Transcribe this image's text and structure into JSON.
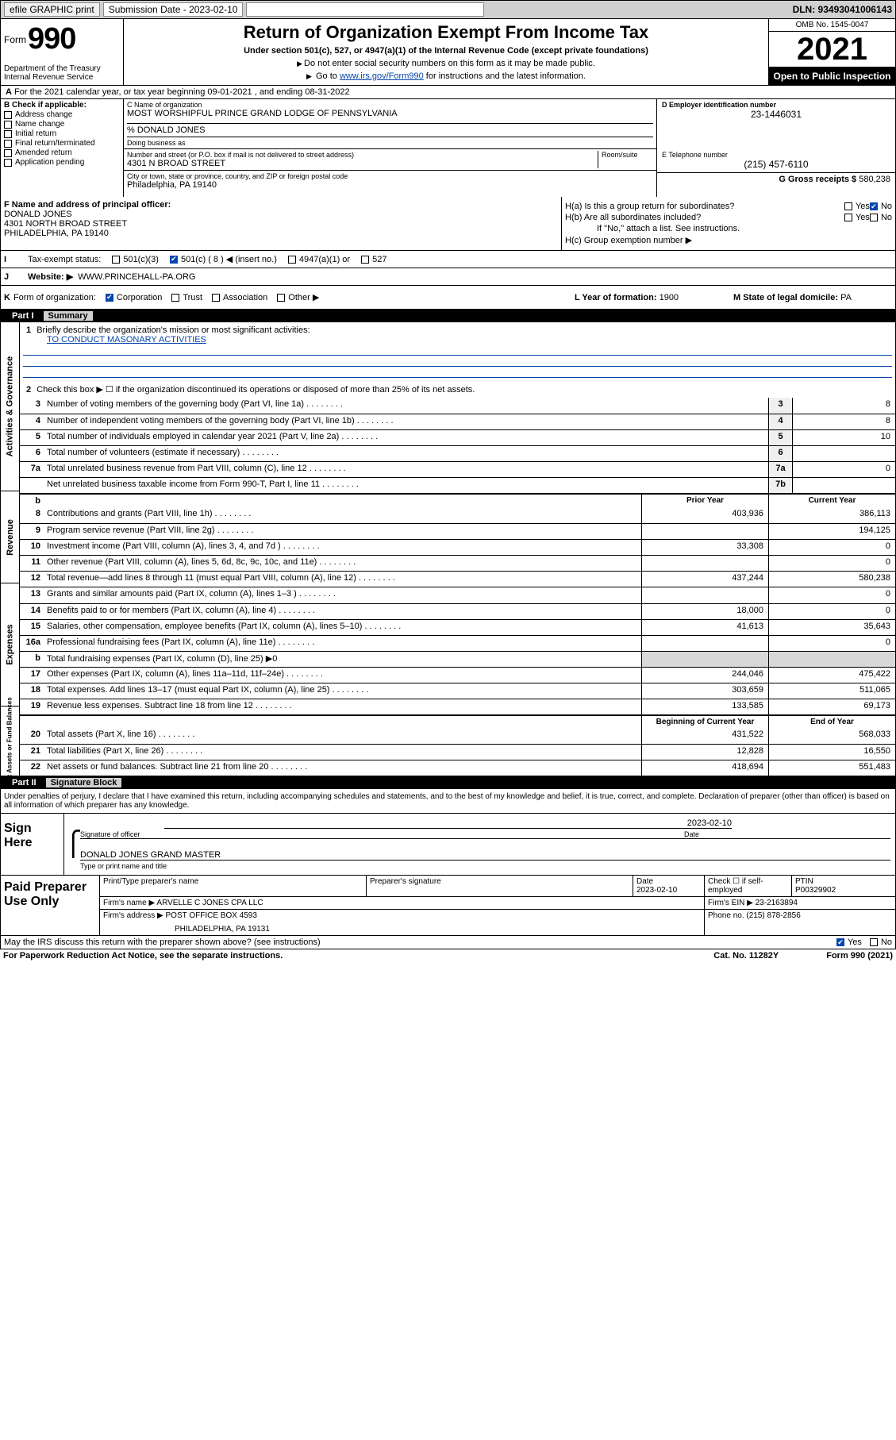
{
  "topbar": {
    "efile": "efile GRAPHIC print",
    "sub_label": "Submission Date - 2023-02-10",
    "dln": "DLN: 93493041006143"
  },
  "header": {
    "form_word": "Form",
    "form_num": "990",
    "dept": "Department of the Treasury\nInternal Revenue Service",
    "title": "Return of Organization Exempt From Income Tax",
    "sub1": "Under section 501(c), 527, or 4947(a)(1) of the Internal Revenue Code (except private foundations)",
    "sub2": "Do not enter social security numbers on this form as it may be made public.",
    "sub3_pre": "Go to ",
    "sub3_link": "www.irs.gov/Form990",
    "sub3_post": " for instructions and the latest information.",
    "omb": "OMB No. 1545-0047",
    "year": "2021",
    "open": "Open to Public Inspection"
  },
  "row_a": {
    "label": "A",
    "text": "For the 2021 calendar year, or tax year beginning 09-01-2021   , and ending 08-31-2022"
  },
  "col_b": {
    "header": "B Check if applicable:",
    "items": [
      "Address change",
      "Name change",
      "Initial return",
      "Final return/terminated",
      "Amended return",
      "Application pending"
    ]
  },
  "col_c": {
    "name_label": "C Name of organization",
    "name": "MOST WORSHIPFUL PRINCE GRAND LODGE OF PENNSYLVANIA",
    "care_of": "% DONALD JONES",
    "dba_label": "Doing business as",
    "addr_label": "Number and street (or P.O. box if mail is not delivered to street address)",
    "addr": "4301 N BROAD STREET",
    "room_label": "Room/suite",
    "city_label": "City or town, state or province, country, and ZIP or foreign postal code",
    "city": "Philadelphia, PA  19140",
    "f_label": "F Name and address of principal officer:",
    "f_name": "DONALD JONES",
    "f_addr1": "4301 NORTH BROAD STREET",
    "f_addr2": "PHILADELPHIA, PA  19140"
  },
  "col_d": {
    "ein_label": "D Employer identification number",
    "ein": "23-1446031",
    "tel_label": "E Telephone number",
    "tel": "(215) 457-6110",
    "gross_label": "G Gross receipts $",
    "gross": "580,238"
  },
  "h": {
    "ha": "H(a)  Is this a group return for subordinates?",
    "hb": "H(b)  Are all subordinates included?",
    "hb_note": "If \"No,\" attach a list. See instructions.",
    "hc": "H(c)  Group exemption number ▶",
    "yes": "Yes",
    "no": "No"
  },
  "row_i": {
    "key": "I",
    "label": "Tax-exempt status:",
    "opt1": "501(c)(3)",
    "opt2": "501(c) ( 8 ) ◀ (insert no.)",
    "opt3": "4947(a)(1) or",
    "opt4": "527"
  },
  "row_j": {
    "key": "J",
    "label": "Website: ▶",
    "val": "WWW.PRINCEHALL-PA.ORG"
  },
  "row_k": {
    "key": "K",
    "label": "Form of organization:",
    "opts": [
      "Corporation",
      "Trust",
      "Association",
      "Other ▶"
    ],
    "l_label": "L Year of formation:",
    "l_val": "1900",
    "m_label": "M State of legal domicile:",
    "m_val": "PA"
  },
  "part1": {
    "num": "Part I",
    "title": "Summary"
  },
  "activities": {
    "tab": "Activities & Governance",
    "q1_num": "1",
    "q1": "Briefly describe the organization's mission or most significant activities:",
    "q1_val": "TO CONDUCT MASONARY ACTIVITIES",
    "q2_num": "2",
    "q2": "Check this box ▶ ☐  if the organization discontinued its operations or disposed of more than 25% of its net assets.",
    "rows": [
      {
        "n": "3",
        "t": "Number of voting members of the governing body (Part VI, line 1a)",
        "box": "3",
        "v": "8"
      },
      {
        "n": "4",
        "t": "Number of independent voting members of the governing body (Part VI, line 1b)",
        "box": "4",
        "v": "8"
      },
      {
        "n": "5",
        "t": "Total number of individuals employed in calendar year 2021 (Part V, line 2a)",
        "box": "5",
        "v": "10"
      },
      {
        "n": "6",
        "t": "Total number of volunteers (estimate if necessary)",
        "box": "6",
        "v": ""
      },
      {
        "n": "7a",
        "t": "Total unrelated business revenue from Part VIII, column (C), line 12",
        "box": "7a",
        "v": "0"
      },
      {
        "n": "",
        "t": "Net unrelated business taxable income from Form 990-T, Part I, line 11",
        "box": "7b",
        "v": ""
      }
    ]
  },
  "revenue": {
    "tab": "Revenue",
    "hdr_b": "b",
    "hdr_prior": "Prior Year",
    "hdr_curr": "Current Year",
    "rows": [
      {
        "n": "8",
        "t": "Contributions and grants (Part VIII, line 1h)",
        "p": "403,936",
        "c": "386,113"
      },
      {
        "n": "9",
        "t": "Program service revenue (Part VIII, line 2g)",
        "p": "",
        "c": "194,125"
      },
      {
        "n": "10",
        "t": "Investment income (Part VIII, column (A), lines 3, 4, and 7d )",
        "p": "33,308",
        "c": "0"
      },
      {
        "n": "11",
        "t": "Other revenue (Part VIII, column (A), lines 5, 6d, 8c, 9c, 10c, and 11e)",
        "p": "",
        "c": "0"
      },
      {
        "n": "12",
        "t": "Total revenue—add lines 8 through 11 (must equal Part VIII, column (A), line 12)",
        "p": "437,244",
        "c": "580,238"
      }
    ]
  },
  "expenses": {
    "tab": "Expenses",
    "rows": [
      {
        "n": "13",
        "t": "Grants and similar amounts paid (Part IX, column (A), lines 1–3 )",
        "p": "",
        "c": "0"
      },
      {
        "n": "14",
        "t": "Benefits paid to or for members (Part IX, column (A), line 4)",
        "p": "18,000",
        "c": "0"
      },
      {
        "n": "15",
        "t": "Salaries, other compensation, employee benefits (Part IX, column (A), lines 5–10)",
        "p": "41,613",
        "c": "35,643"
      },
      {
        "n": "16a",
        "t": "Professional fundraising fees (Part IX, column (A), line 11e)",
        "p": "",
        "c": "0"
      },
      {
        "n": "b",
        "t": "Total fundraising expenses (Part IX, column (D), line 25) ▶0",
        "p": null,
        "c": null
      },
      {
        "n": "17",
        "t": "Other expenses (Part IX, column (A), lines 11a–11d, 11f–24e)",
        "p": "244,046",
        "c": "475,422"
      },
      {
        "n": "18",
        "t": "Total expenses. Add lines 13–17 (must equal Part IX, column (A), line 25)",
        "p": "303,659",
        "c": "511,065"
      },
      {
        "n": "19",
        "t": "Revenue less expenses. Subtract line 18 from line 12",
        "p": "133,585",
        "c": "69,173"
      }
    ]
  },
  "netassets": {
    "tab": "Net Assets or Fund Balances",
    "hdr_beg": "Beginning of Current Year",
    "hdr_end": "End of Year",
    "rows": [
      {
        "n": "20",
        "t": "Total assets (Part X, line 16)",
        "p": "431,522",
        "c": "568,033"
      },
      {
        "n": "21",
        "t": "Total liabilities (Part X, line 26)",
        "p": "12,828",
        "c": "16,550"
      },
      {
        "n": "22",
        "t": "Net assets or fund balances. Subtract line 21 from line 20",
        "p": "418,694",
        "c": "551,483"
      }
    ]
  },
  "part2": {
    "num": "Part II",
    "title": "Signature Block",
    "text": "Under penalties of perjury, I declare that I have examined this return, including accompanying schedules and statements, and to the best of my knowledge and belief, it is true, correct, and complete. Declaration of preparer (other than officer) is based on all information of which preparer has any knowledge."
  },
  "sign": {
    "label": "Sign Here",
    "sig_of_officer": "Signature of officer",
    "date_label": "Date",
    "date": "2023-02-10",
    "name": "DONALD JONES GRAND MASTER",
    "name_label": "Type or print name and title"
  },
  "prep": {
    "label": "Paid Preparer Use Only",
    "r1": {
      "c1_label": "Print/Type preparer's name",
      "c2_label": "Preparer's signature",
      "c3_label": "Date",
      "c3_val": "2023-02-10",
      "c4_label": "Check ☐ if self-employed",
      "c5_label": "PTIN",
      "c5_val": "P00329902"
    },
    "r2": {
      "label": "Firm's name    ▶",
      "val": "ARVELLE C JONES CPA LLC",
      "ein_label": "Firm's EIN ▶",
      "ein": "23-2163894"
    },
    "r3": {
      "label": "Firm's address ▶",
      "val1": "POST OFFICE BOX 4593",
      "val2": "PHILADELPHIA, PA  19131",
      "ph_label": "Phone no.",
      "ph": "(215) 878-2856"
    }
  },
  "footer": {
    "discuss": "May the IRS discuss this return with the preparer shown above? (see instructions)",
    "yes": "Yes",
    "no": "No",
    "paperwork": "For Paperwork Reduction Act Notice, see the separate instructions.",
    "cat": "Cat. No. 11282Y",
    "form": "Form 990 (2021)"
  }
}
